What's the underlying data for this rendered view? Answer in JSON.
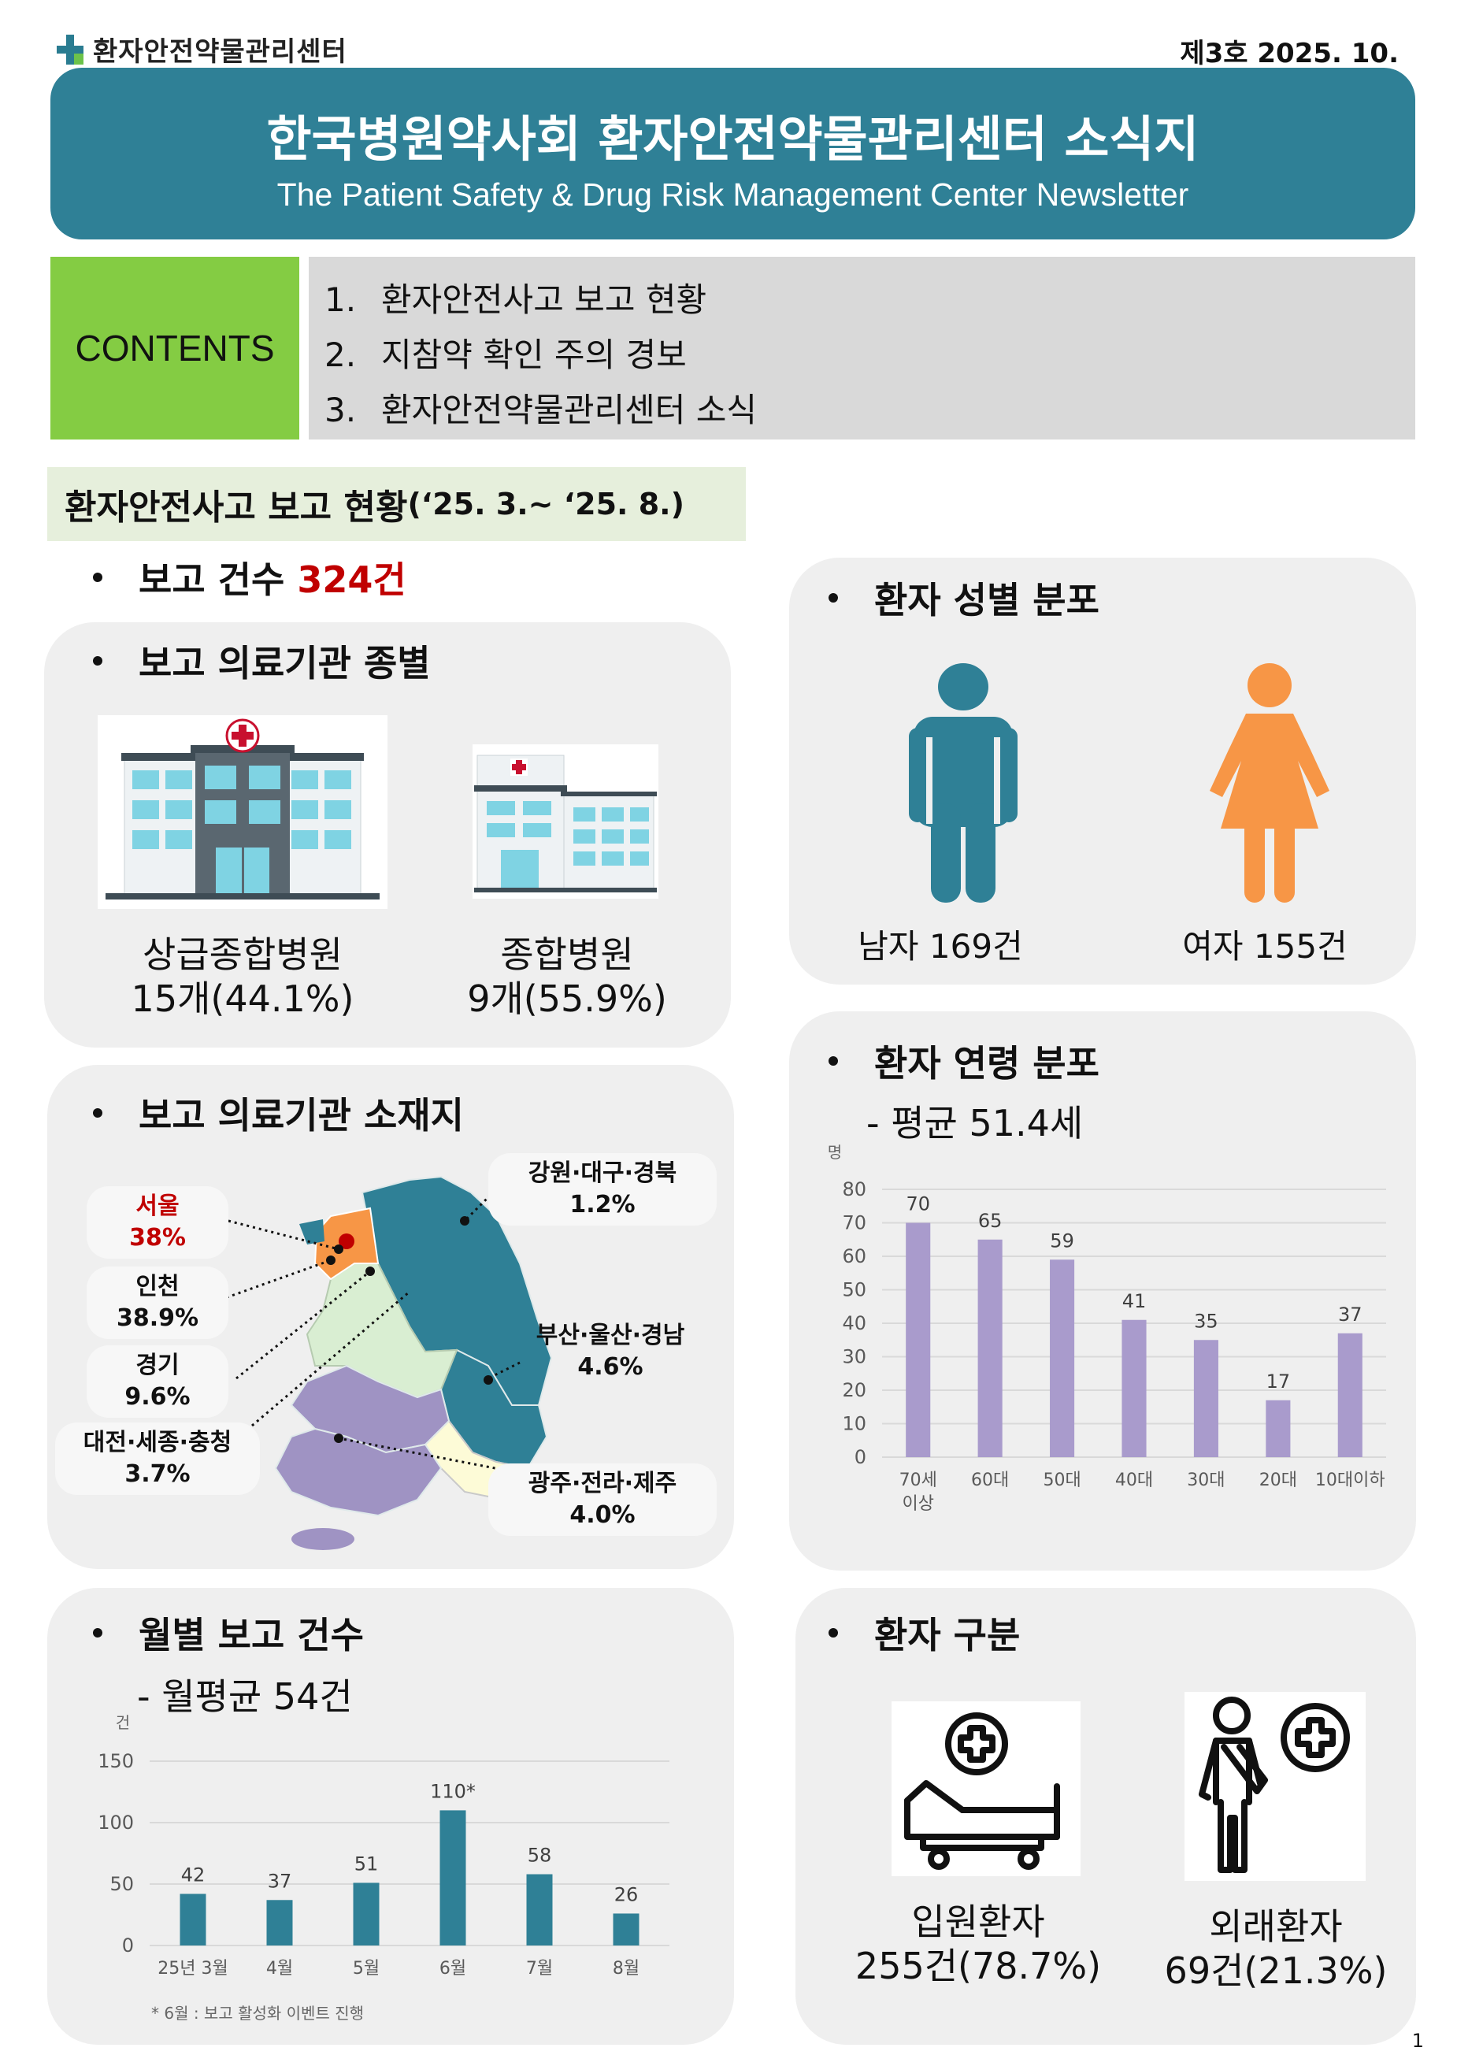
{
  "header": {
    "logo_text": "환자안전약물관리센터",
    "issue": "제3호 2025. 10.",
    "title": "한국병원약사회 환자안전약물관리센터 소식지",
    "subtitle": "The Patient Safety & Drug Risk Management Center Newsletter"
  },
  "contents": {
    "label": "CONTENTS",
    "items": [
      {
        "num": "1.",
        "text": "환자안전사고 보고 현황"
      },
      {
        "num": "2.",
        "text": "지참약 확인 주의 경보"
      },
      {
        "num": "3.",
        "text": "환자안전약물관리센터 소식"
      }
    ]
  },
  "section": {
    "title": "환자안전사고 보고 현황",
    "period": "(‘25. 3.~ ‘25. 8.)"
  },
  "report_count": {
    "label": "보고 건수 ",
    "value": "324건"
  },
  "institution_type": {
    "title": "보고 의료기관 종별",
    "items": [
      {
        "name": "상급종합병원",
        "value": "15개(44.1%)"
      },
      {
        "name": "종합병원",
        "value": "9개(55.9%)"
      }
    ]
  },
  "gender": {
    "title": "환자 성별 분포",
    "male": "남자 169건",
    "female": "여자 155건",
    "male_color": "#2f8096",
    "female_color": "#f79646"
  },
  "location": {
    "title": "보고 의료기관 소재지",
    "regions": [
      {
        "name": "서울",
        "pct": "38%"
      },
      {
        "name": "인천",
        "pct": "38.9%"
      },
      {
        "name": "경기",
        "pct": "9.6%"
      },
      {
        "name": "대전·세종·충청",
        "pct": "3.7%"
      },
      {
        "name": "강원·대구·경북",
        "pct": "1.2%"
      },
      {
        "name": "부산·울산·경남",
        "pct": "4.6%"
      },
      {
        "name": "광주·전라·제주",
        "pct": "4.0%"
      }
    ]
  },
  "age": {
    "title": "환자 연령 분포",
    "avg": "- 평균 51.4세",
    "unit": "명"
  },
  "monthly": {
    "title": "월별 보고 건수",
    "avg": "- 월평균 54건",
    "unit": "건",
    "footnote": "* 6월 : 보고 활성화 이벤트 진행"
  },
  "patient_type": {
    "title": "환자 구분",
    "items": [
      {
        "name": "입원환자",
        "value": "255건(78.7%)"
      },
      {
        "name": "외래환자",
        "value": "69건(21.3%)"
      }
    ]
  },
  "page_number": "1",
  "chart_data": [
    {
      "type": "bar",
      "categories": [
        "70세 이상",
        "60대",
        "50대",
        "40대",
        "30대",
        "20대",
        "10대이하"
      ],
      "values": [
        70,
        65,
        59,
        41,
        35,
        17,
        37
      ],
      "ylabel": "명",
      "ylim": [
        0,
        80
      ],
      "yticks": [
        0,
        10,
        20,
        30,
        40,
        50,
        60,
        70,
        80
      ],
      "grid": true,
      "color": "#a99bcc"
    },
    {
      "type": "bar",
      "categories": [
        "25년 3월",
        "4월",
        "5월",
        "6월",
        "7월",
        "8월"
      ],
      "values": [
        42,
        37,
        51,
        110,
        58,
        26
      ],
      "data_labels": [
        "42",
        "37",
        "51",
        "110*",
        "58",
        "26"
      ],
      "ylabel": "건",
      "ylim": [
        0,
        150
      ],
      "yticks": [
        0,
        50,
        100,
        150
      ],
      "grid": true,
      "color": "#2f8096"
    }
  ]
}
